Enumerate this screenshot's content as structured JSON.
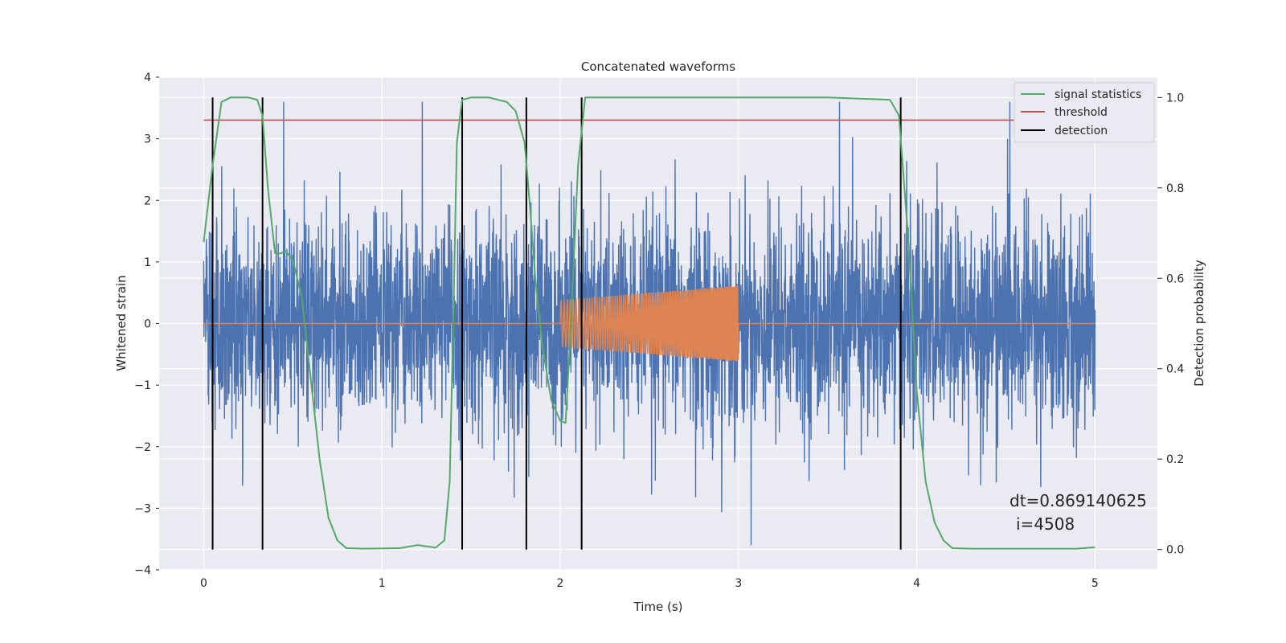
{
  "chart_data": {
    "type": "line",
    "title": "Concatenated waveforms",
    "xlabel": "Time (s)",
    "ylabel": "Whitened strain",
    "ylabel_right": "Detection probability",
    "xlim": [
      -0.25,
      5.35
    ],
    "ylim": [
      -4,
      4
    ],
    "ylim_right": [
      -0.045,
      1.045
    ],
    "x_ticks": [
      0,
      1,
      2,
      3,
      4,
      5
    ],
    "y_ticks": [
      -4,
      -3,
      -2,
      -1,
      0,
      1,
      2,
      3,
      4
    ],
    "y_right_ticks": [
      0.0,
      0.2,
      0.4,
      0.6,
      0.8,
      1.0
    ],
    "grid": true,
    "legend_position": "top-right",
    "legend": [
      "signal statistics",
      "threshold",
      "detection"
    ],
    "series": [
      {
        "name": "noise",
        "axis": "left",
        "color": "#4c72b0",
        "description_values": {
          "x_start": 0,
          "x_end": 5,
          "typical_amplitude": 1.0,
          "peak": 3.6
        }
      },
      {
        "name": "injected signal",
        "axis": "left",
        "color": "#dd8452",
        "x_start": 2.0,
        "x_end": 3.0,
        "amplitude_start": 0.38,
        "amplitude_end": 0.62
      },
      {
        "name": "signal statistics",
        "axis": "right",
        "color": "#55a868",
        "x": [
          0.0,
          0.05,
          0.1,
          0.15,
          0.25,
          0.3,
          0.33,
          0.36,
          0.4,
          0.43,
          0.46,
          0.5,
          0.55,
          0.6,
          0.65,
          0.7,
          0.75,
          0.8,
          0.9,
          1.1,
          1.2,
          1.25,
          1.3,
          1.35,
          1.38,
          1.4,
          1.42,
          1.45,
          1.5,
          1.6,
          1.7,
          1.75,
          1.8,
          1.83,
          1.86,
          1.9,
          1.95,
          2.0,
          2.03,
          2.06,
          2.1,
          2.14,
          2.2,
          2.5,
          3.0,
          3.5,
          3.85,
          3.9,
          3.95,
          4.0,
          4.05,
          4.1,
          4.15,
          4.2,
          4.3,
          4.6,
          4.9,
          5.0
        ],
        "y": [
          0.68,
          0.85,
          0.99,
          1.0,
          1.0,
          0.995,
          0.96,
          0.8,
          0.655,
          0.655,
          0.66,
          0.64,
          0.56,
          0.38,
          0.2,
          0.07,
          0.02,
          0.003,
          0.002,
          0.003,
          0.01,
          0.007,
          0.004,
          0.02,
          0.15,
          0.5,
          0.9,
          0.995,
          1.0,
          1.0,
          0.99,
          0.97,
          0.9,
          0.76,
          0.6,
          0.45,
          0.33,
          0.285,
          0.28,
          0.5,
          0.85,
          1.0,
          1.0,
          1.0,
          1.0,
          1.0,
          0.995,
          0.96,
          0.7,
          0.35,
          0.15,
          0.06,
          0.02,
          0.003,
          0.002,
          0.002,
          0.002,
          0.005
        ]
      },
      {
        "name": "threshold",
        "axis": "right",
        "color": "#c44e52",
        "x": [
          0,
          5
        ],
        "y": [
          0.95,
          0.95
        ]
      },
      {
        "name": "detection",
        "axis": "right",
        "color": "#000000",
        "x": [
          0.05,
          0.33,
          1.45,
          1.81,
          2.12,
          3.91
        ],
        "y_range": [
          0.0,
          1.0
        ]
      }
    ],
    "annotations": [
      "dt=0.869140625",
      "i=4508"
    ]
  }
}
